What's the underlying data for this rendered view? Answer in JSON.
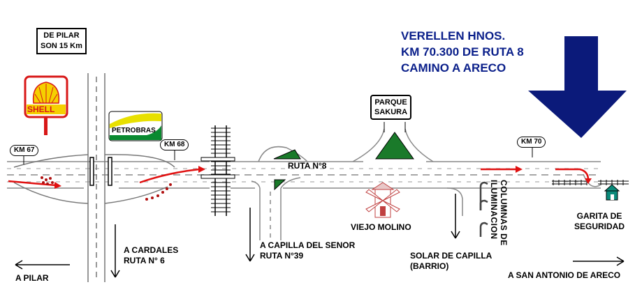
{
  "header": {
    "line1": "VERELLEN HNOS.",
    "line2": "KM 70.300 DE RUTA 8",
    "line3": "CAMINO A ARECO"
  },
  "signs": {
    "pilar_box_line1": "DE PILAR",
    "pilar_box_line2": "SON 15 Km",
    "km67": "KM 67",
    "km68": "KM 68",
    "km70": "KM 70",
    "shell": "SHELL",
    "petrobras": "PETROBRAS",
    "parque_line1": "PARQUE",
    "parque_line2": "SAKURA"
  },
  "labels": {
    "ruta8": "RUTA N°8",
    "a_pilar": "A PILAR",
    "cardales_line1": "A CARDALES",
    "cardales_line2": "RUTA N° 6",
    "capilla_line1": "A CAPILLA DEL SENOR",
    "capilla_line2": "RUTA N°39",
    "viejo_molino": "VIEJO MOLINO",
    "solar_line1": "SOLAR DE CAPILLA",
    "solar_line2": "(BARRIO)",
    "columnas": "COLUMNAS DE ILUMINACION",
    "garita_line1": "GARITA DE",
    "garita_line2": "SEGURIDAD",
    "san_antonio": "A SAN ANTONIO DE ARECO"
  },
  "colors": {
    "title_blue": "#0a1f8a",
    "arrow_navy": "#0b1a7a",
    "route_red": "#e01010",
    "shell_red": "#d81818",
    "shell_yellow": "#f5d000",
    "petrobras_green": "#0a8a30",
    "petrobras_yellow": "#e8e000",
    "tree_green": "#1a7a2a",
    "house_teal": "#0a8a7a",
    "road_gray": "#808080"
  }
}
